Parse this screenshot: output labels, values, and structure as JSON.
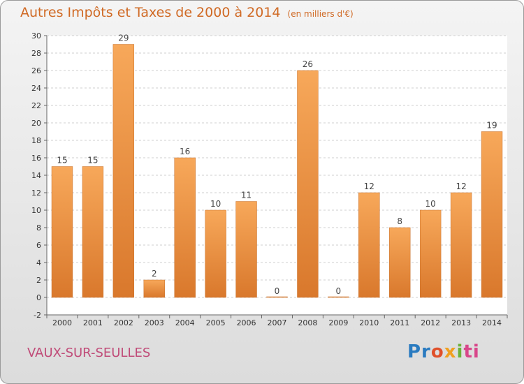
{
  "title": "Autres Impôts et Taxes de 2000 à 2014",
  "subtitle": "(en milliers d'€)",
  "commune": "VAUX-SUR-SEULLES",
  "logo": [
    "Pr",
    "o",
    "x",
    "i",
    "ti"
  ],
  "chart_data": {
    "type": "bar",
    "title": "Autres Impôts et Taxes de 2000 à 2014",
    "subtitle": "(en milliers d'€)",
    "xlabel": "",
    "ylabel": "",
    "categories": [
      "2000",
      "2001",
      "2002",
      "2003",
      "2004",
      "2005",
      "2006",
      "2007",
      "2008",
      "2009",
      "2010",
      "2011",
      "2012",
      "2013",
      "2014"
    ],
    "values": [
      15,
      15,
      29,
      2,
      16,
      10,
      11,
      0,
      26,
      0,
      12,
      8,
      10,
      12,
      19
    ],
    "data_labels": [
      "15",
      "15",
      "29",
      "2",
      "16",
      "10",
      "11",
      "0",
      "26",
      "0",
      "12",
      "8",
      "10",
      "12",
      "19"
    ],
    "ylim": [
      -2,
      30
    ],
    "yticks": [
      -2,
      0,
      2,
      4,
      6,
      8,
      10,
      12,
      14,
      16,
      18,
      20,
      22,
      24,
      26,
      28,
      30
    ],
    "ytick_labels": [
      "-2",
      "0",
      "2",
      "4",
      "6",
      "8",
      "10",
      "12",
      "14",
      "16",
      "18",
      "20",
      "22",
      "24",
      "26",
      "28",
      "30"
    ],
    "grid": true,
    "bar_color": "#f29a45"
  }
}
